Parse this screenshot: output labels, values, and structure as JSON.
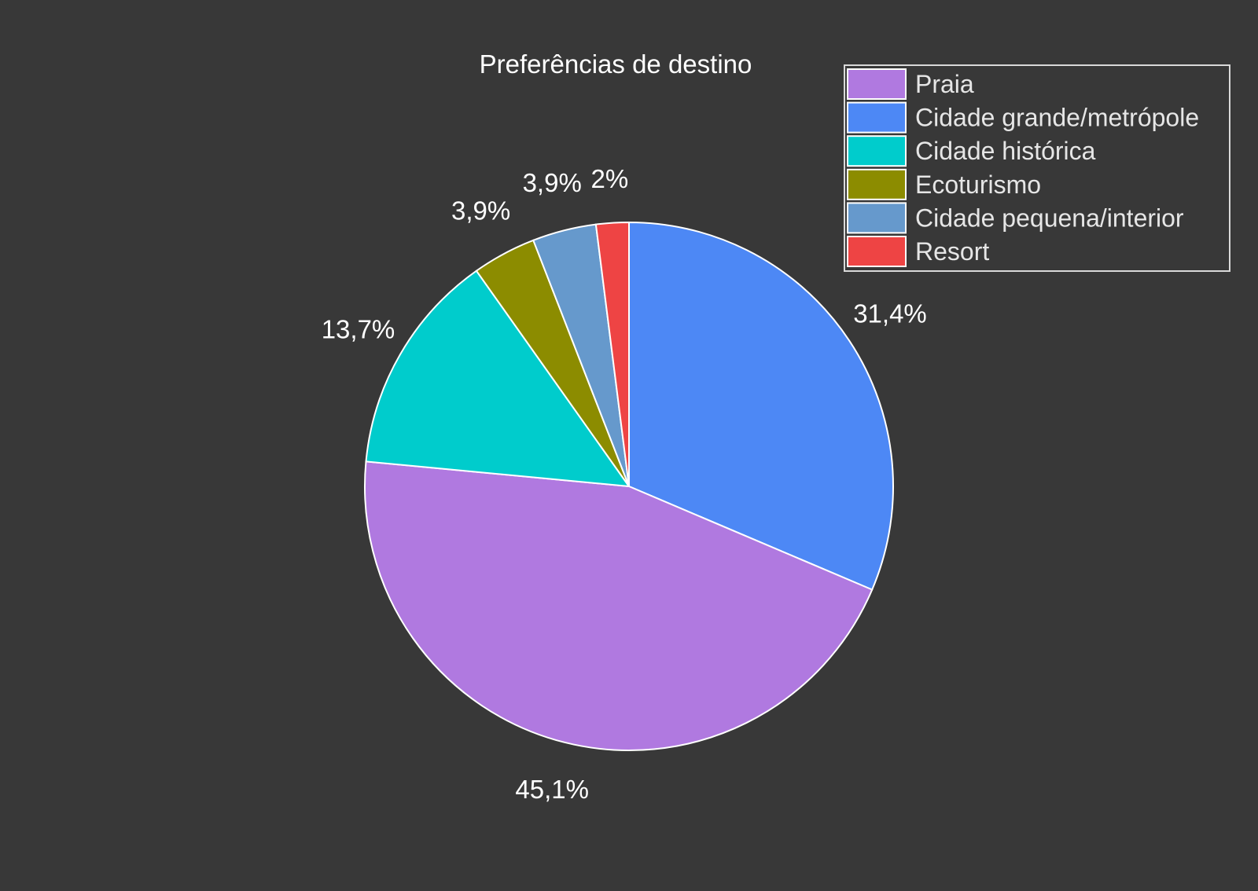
{
  "chart_data": {
    "type": "pie",
    "title": "Preferências de destino",
    "categories": [
      "Praia",
      "Cidade grande/metrópole",
      "Cidade histórica",
      "Ecoturismo",
      "Cidade pequena/interior",
      "Resort"
    ],
    "values": [
      45.1,
      31.4,
      13.7,
      3.9,
      3.9,
      2.0
    ],
    "value_labels": [
      "45,1%",
      "31,4%",
      "13,7%",
      "3,9%",
      "3,9%",
      "2%"
    ],
    "colors": [
      "#b079e0",
      "#4d88f5",
      "#00cccc",
      "#8c8c00",
      "#6699cc",
      "#ee4444"
    ],
    "legend_position": "top-right",
    "slice_order": "counterclockwise from top; Resort last before 12 o'clock, Cidade grande/metrópole clockwise from 12 o'clock",
    "background": "#383838",
    "slice_border_color": "#ffffff"
  }
}
